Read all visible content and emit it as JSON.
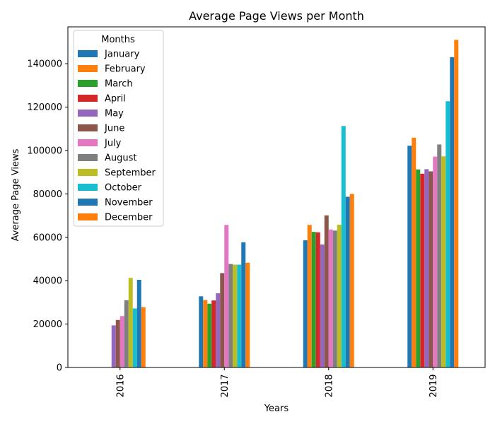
{
  "chart_data": {
    "type": "bar",
    "title": "Average Page Views per Month",
    "xlabel": "Years",
    "ylabel": "Average Page Views",
    "categories": [
      "2016",
      "2017",
      "2018",
      "2019"
    ],
    "ylim": [
      0,
      157000
    ],
    "yticks": [
      0,
      20000,
      40000,
      60000,
      80000,
      100000,
      120000,
      140000
    ],
    "grid": false,
    "legend": {
      "title": "Months",
      "placement": "top-left"
    },
    "series": [
      {
        "name": "January",
        "color": "#1f77b4",
        "values": [
          null,
          32800,
          58600,
          102200
        ]
      },
      {
        "name": "February",
        "color": "#ff7f0e",
        "values": [
          null,
          31100,
          65700,
          105900
        ]
      },
      {
        "name": "March",
        "color": "#2ca02c",
        "values": [
          null,
          29400,
          62500,
          91300
        ]
      },
      {
        "name": "April",
        "color": "#d62728",
        "values": [
          null,
          30900,
          62300,
          89300
        ]
      },
      {
        "name": "May",
        "color": "#9467bd",
        "values": [
          19400,
          34200,
          56700,
          91400
        ]
      },
      {
        "name": "June",
        "color": "#8c564b",
        "values": [
          21900,
          43500,
          70100,
          90400
        ]
      },
      {
        "name": "July",
        "color": "#e377c2",
        "values": [
          23700,
          65700,
          63600,
          97200
        ]
      },
      {
        "name": "August",
        "color": "#7f7f7f",
        "values": [
          31000,
          47700,
          63100,
          102800
        ]
      },
      {
        "name": "September",
        "color": "#bcbd22",
        "values": [
          41300,
          47400,
          65800,
          97300
        ]
      },
      {
        "name": "October",
        "color": "#17becf",
        "values": [
          27200,
          47400,
          111300,
          122700
        ]
      },
      {
        "name": "November",
        "color": "#1f77b4",
        "values": [
          40400,
          57700,
          78700,
          143000
        ]
      },
      {
        "name": "December",
        "color": "#ff7f0e",
        "values": [
          27800,
          48300,
          80000,
          151000
        ]
      }
    ]
  }
}
